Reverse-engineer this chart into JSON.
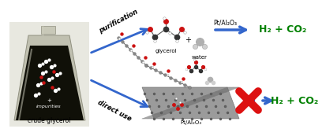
{
  "bg_color": "#ffffff",
  "arrow_color": "#3366cc",
  "product_color": "#008000",
  "cross_color": "#dd1111",
  "flask_label": "crude glycerol",
  "glycerol_label": "glycerol",
  "water_label": "water",
  "purification_label": "purification",
  "direct_use_label": "direct use",
  "catalyst_top": "Pt/Al₂O₃",
  "catalyst_bot": "Pt/Al₂O₃",
  "product_top": "H₂ + CO₂",
  "product_bot": "H₂ + CO₂",
  "impurities_label": "impurities",
  "plus_label": "+"
}
